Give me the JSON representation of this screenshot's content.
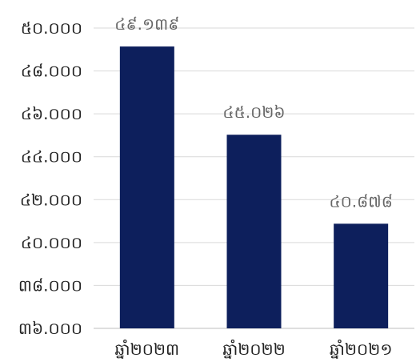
{
  "chart_data": {
    "type": "bar",
    "categories": [
      "ឆ្នាំ២០២៣",
      "ឆ្នាំ២០២២",
      "ឆ្នាំ២០២១"
    ],
    "values": [
      49.139,
      45.026,
      40.878
    ],
    "data_labels": [
      "៤៩.១៣៩",
      "៤៥.០២៦",
      "៤០.៨៧៨"
    ],
    "yticks": [
      36,
      38,
      40,
      42,
      44,
      46,
      48,
      50
    ],
    "ytick_labels": [
      "៣៦.០០០",
      "៣៨.០០០",
      "៤០.០០០",
      "៤២.០០០",
      "៤៤.០០០",
      "៤៦.០០០",
      "៤៨.០០០",
      "៥០.០០០"
    ],
    "ylim": [
      36,
      50
    ],
    "grid": true,
    "legend": "none",
    "title": "",
    "xlabel": "",
    "ylabel": "",
    "colors": {
      "bar": "#0d1f5c",
      "grid": "#d9d9d9",
      "axis": "#bfbfbf"
    }
  }
}
